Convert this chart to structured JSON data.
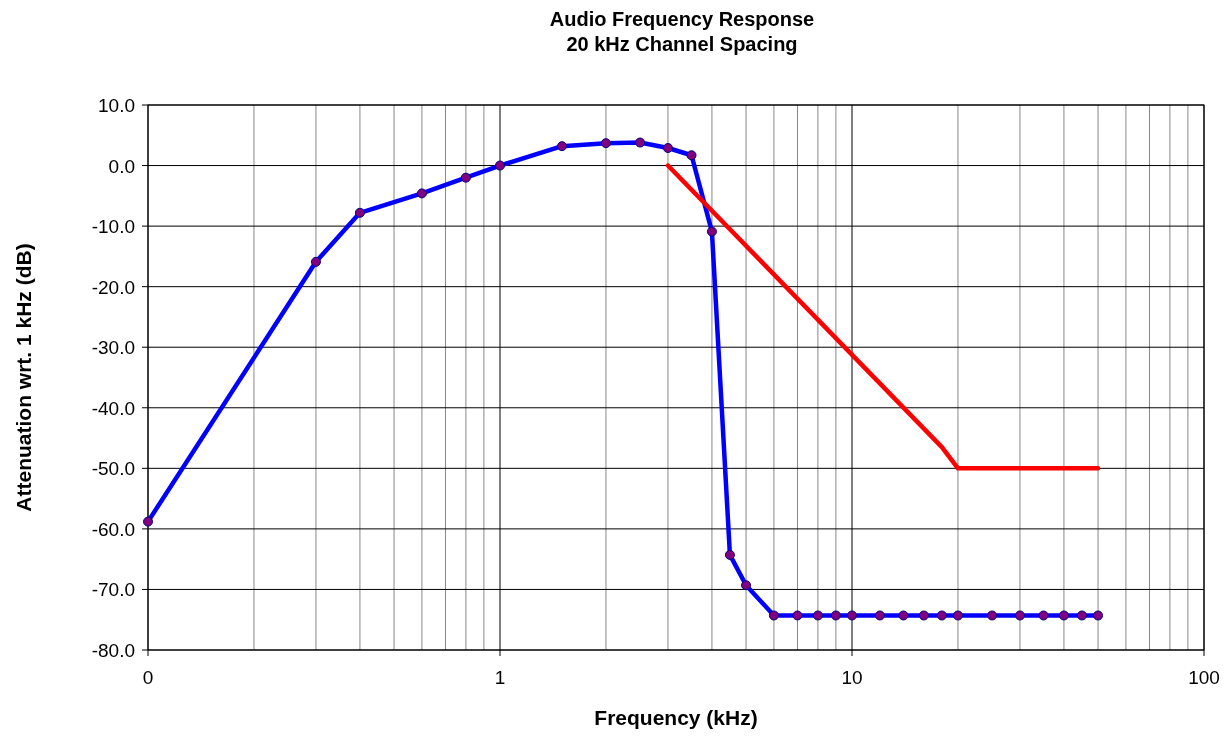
{
  "chart_data": {
    "type": "line",
    "title": "Audio Frequency Response\n20 kHz Channel Spacing",
    "xlabel": "Frequency (kHz)",
    "ylabel": "Attenuation wrt. 1 kHz (dB)",
    "log": "x",
    "grid": true,
    "line_style": "solid",
    "xlim": [
      0.1,
      100
    ],
    "xticks": [
      {
        "value": 0.1,
        "label": "0"
      },
      1,
      10,
      100
    ],
    "ylim": [
      -80,
      10
    ],
    "yticks": [
      {
        "value": 10,
        "label": "10.0"
      },
      {
        "value": 0,
        "label": "0.0"
      },
      {
        "value": -10,
        "label": "-10.0"
      },
      {
        "value": -20,
        "label": "-20.0"
      },
      {
        "value": -30,
        "label": "-30.0"
      },
      {
        "value": -40,
        "label": "-40.0"
      },
      {
        "value": -50,
        "label": "-50.0"
      },
      {
        "value": -60,
        "label": "-60.0"
      },
      {
        "value": -70,
        "label": "-70.0"
      },
      {
        "value": -80,
        "label": "-80.0"
      }
    ],
    "series": [
      {
        "color": "#0000ff",
        "marker": "circle",
        "x": [
          0.1,
          0.3,
          0.4,
          0.6,
          0.8,
          1,
          1.5,
          2,
          2.5,
          3,
          3.5,
          4,
          4.5,
          5,
          6,
          7,
          8,
          9,
          10,
          12,
          14,
          16,
          18,
          20,
          25,
          30,
          35,
          40,
          45,
          50
        ],
        "values": [
          -58.8,
          -15.9,
          -7.8,
          -4.6,
          -2.0,
          0,
          3.2,
          3.7,
          3.8,
          2.9,
          1.7,
          -10.9,
          -64.3,
          -69.3,
          -74.3,
          -74.3,
          -74.3,
          -74.3,
          -74.3,
          -74.3,
          -74.3,
          -74.3,
          -74.3,
          -74.3,
          -74.3,
          -74.3,
          -74.3,
          -74.3,
          -74.3,
          -74.3
        ]
      },
      {
        "color": "#ff0000",
        "marker": "none",
        "x": [
          3,
          18,
          20,
          50
        ],
        "values": [
          0,
          -46.5,
          -50,
          -50
        ]
      }
    ]
  }
}
